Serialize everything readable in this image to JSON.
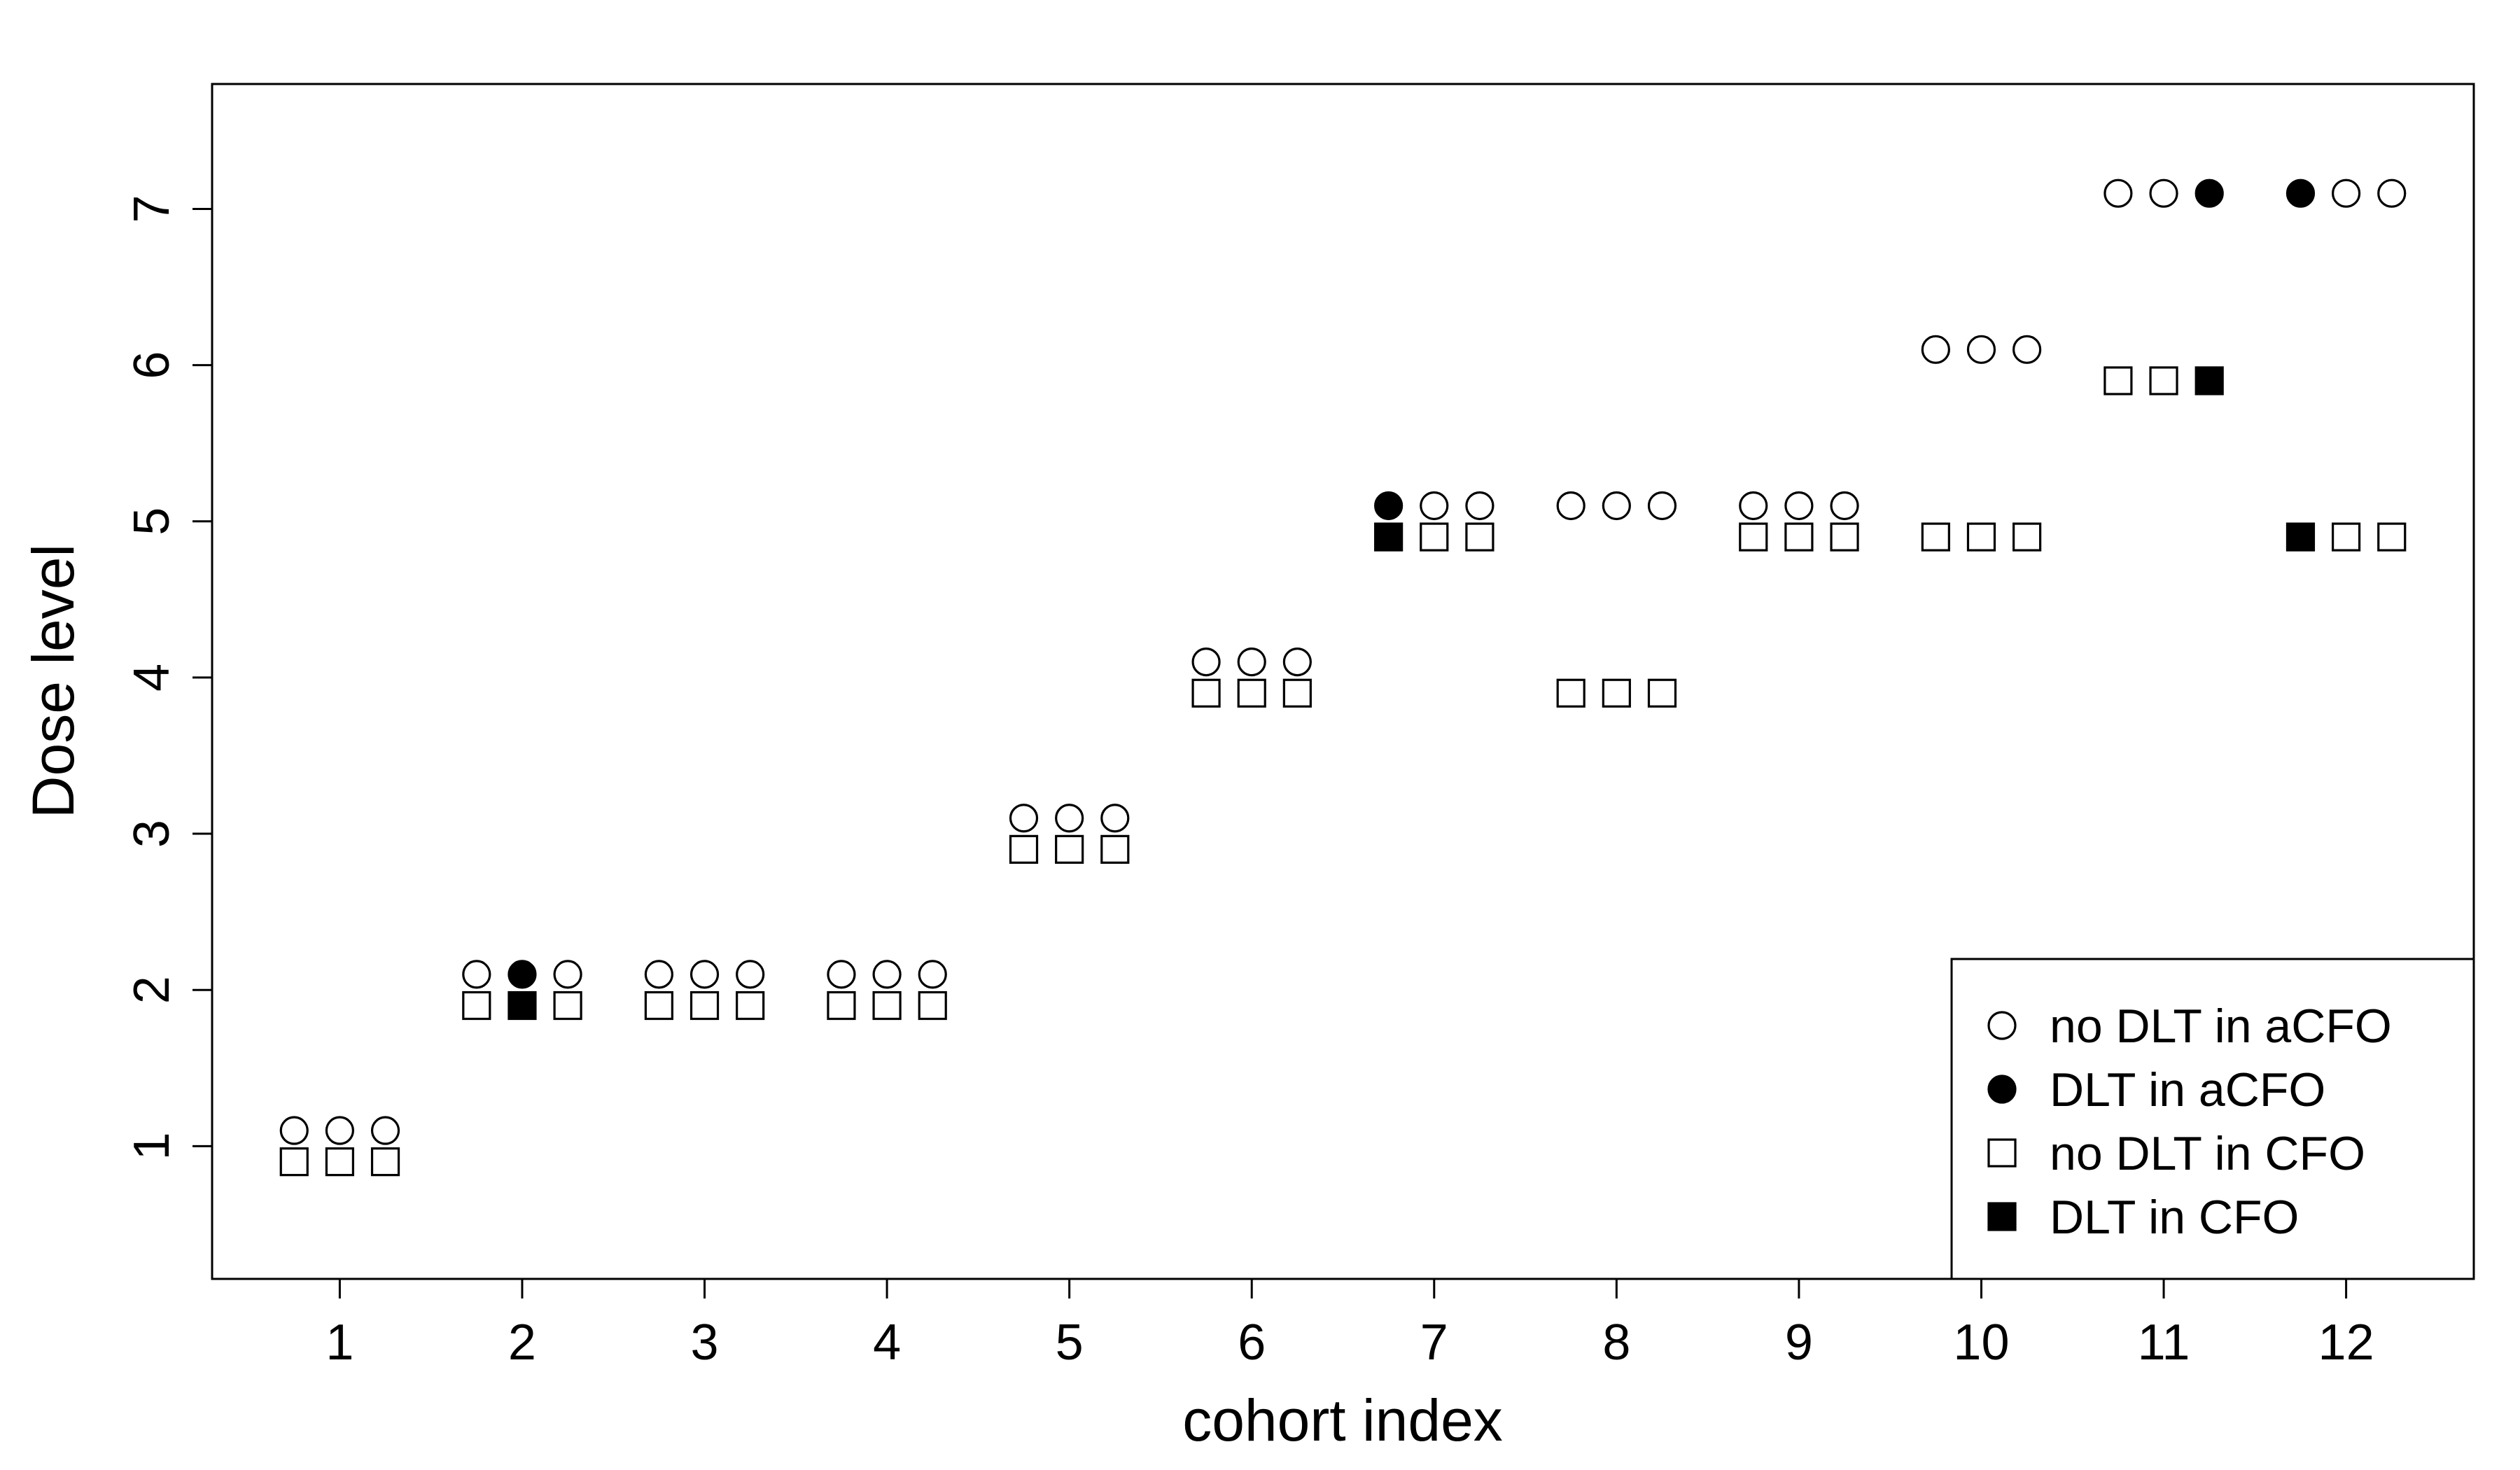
{
  "chart_data": {
    "type": "scatter",
    "xlabel": "cohort index",
    "ylabel": "Dose level",
    "x_ticks": [
      1,
      2,
      3,
      4,
      5,
      6,
      7,
      8,
      9,
      10,
      11,
      12
    ],
    "y_ticks": [
      1,
      2,
      3,
      4,
      5,
      6,
      7
    ],
    "xlim": [
      0.3,
      12.7
    ],
    "ylim": [
      0.15,
      7.8
    ],
    "grid": false,
    "legend_position": "bottom-right",
    "series": [
      {
        "name": "aCFO",
        "doses": [
          1,
          2,
          2,
          2,
          3,
          4,
          5,
          5,
          5,
          6,
          7,
          7
        ],
        "dlt": [
          [
            0,
            0,
            0
          ],
          [
            0,
            1,
            0
          ],
          [
            0,
            0,
            0
          ],
          [
            0,
            0,
            0
          ],
          [
            0,
            0,
            0
          ],
          [
            0,
            0,
            0
          ],
          [
            1,
            0,
            0
          ],
          [
            0,
            0,
            0
          ],
          [
            0,
            0,
            0
          ],
          [
            0,
            0,
            0
          ],
          [
            0,
            0,
            1
          ],
          [
            1,
            0,
            0
          ]
        ]
      },
      {
        "name": "CFO",
        "doses": [
          1,
          2,
          2,
          2,
          3,
          4,
          5,
          4,
          5,
          5,
          6,
          5
        ],
        "dlt": [
          [
            0,
            0,
            0
          ],
          [
            0,
            1,
            0
          ],
          [
            0,
            0,
            0
          ],
          [
            0,
            0,
            0
          ],
          [
            0,
            0,
            0
          ],
          [
            0,
            0,
            0
          ],
          [
            1,
            0,
            0
          ],
          [
            0,
            0,
            0
          ],
          [
            0,
            0,
            0
          ],
          [
            0,
            0,
            0
          ],
          [
            0,
            0,
            1
          ],
          [
            1,
            0,
            0
          ]
        ]
      }
    ],
    "legend": [
      {
        "label": "no DLT in aCFO",
        "marker": "open-circle"
      },
      {
        "label": "DLT in aCFO",
        "marker": "filled-circle"
      },
      {
        "label": "no DLT in CFO",
        "marker": "open-square"
      },
      {
        "label": "DLT in CFO",
        "marker": "filled-square"
      }
    ]
  }
}
